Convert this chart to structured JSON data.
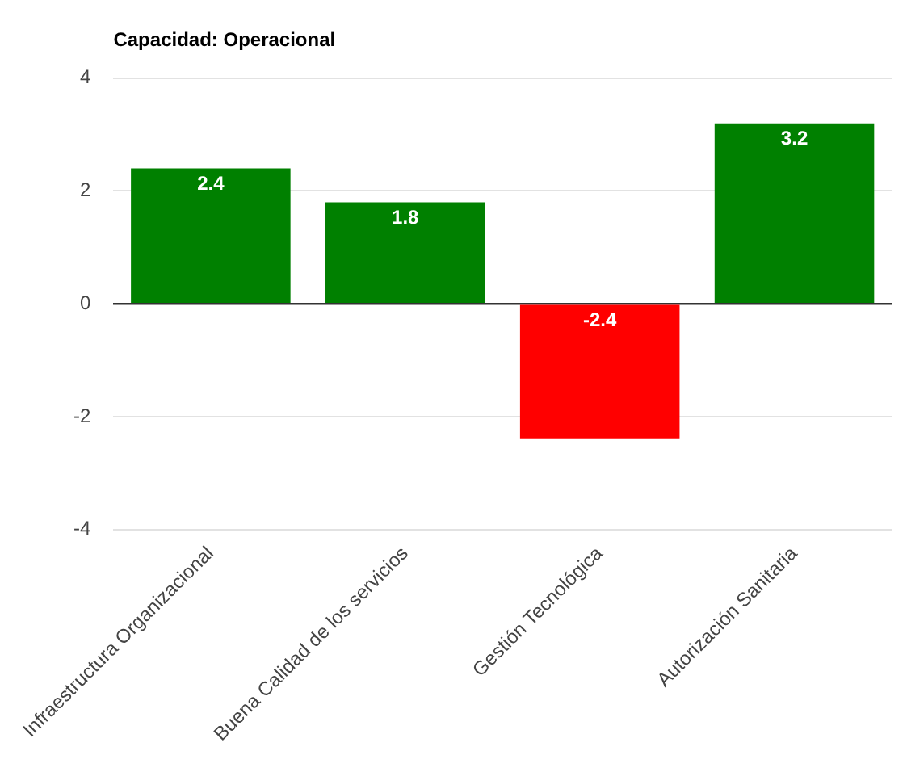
{
  "chart_data": {
    "type": "bar",
    "title": "Capacidad: Operacional",
    "categories": [
      "Infraestructura Organizacional",
      "Buena Calidad de los servicios",
      "Gestión Tecnológica",
      "Autorización Sanitaria"
    ],
    "values": [
      2.4,
      1.8,
      -2.4,
      3.2
    ],
    "colors": [
      "#008000",
      "#008000",
      "#ff0000",
      "#008000"
    ],
    "ylim": [
      -4,
      4
    ],
    "yticks": [
      -4,
      -2,
      0,
      2,
      4
    ],
    "grid": "y",
    "data_labels": true
  }
}
